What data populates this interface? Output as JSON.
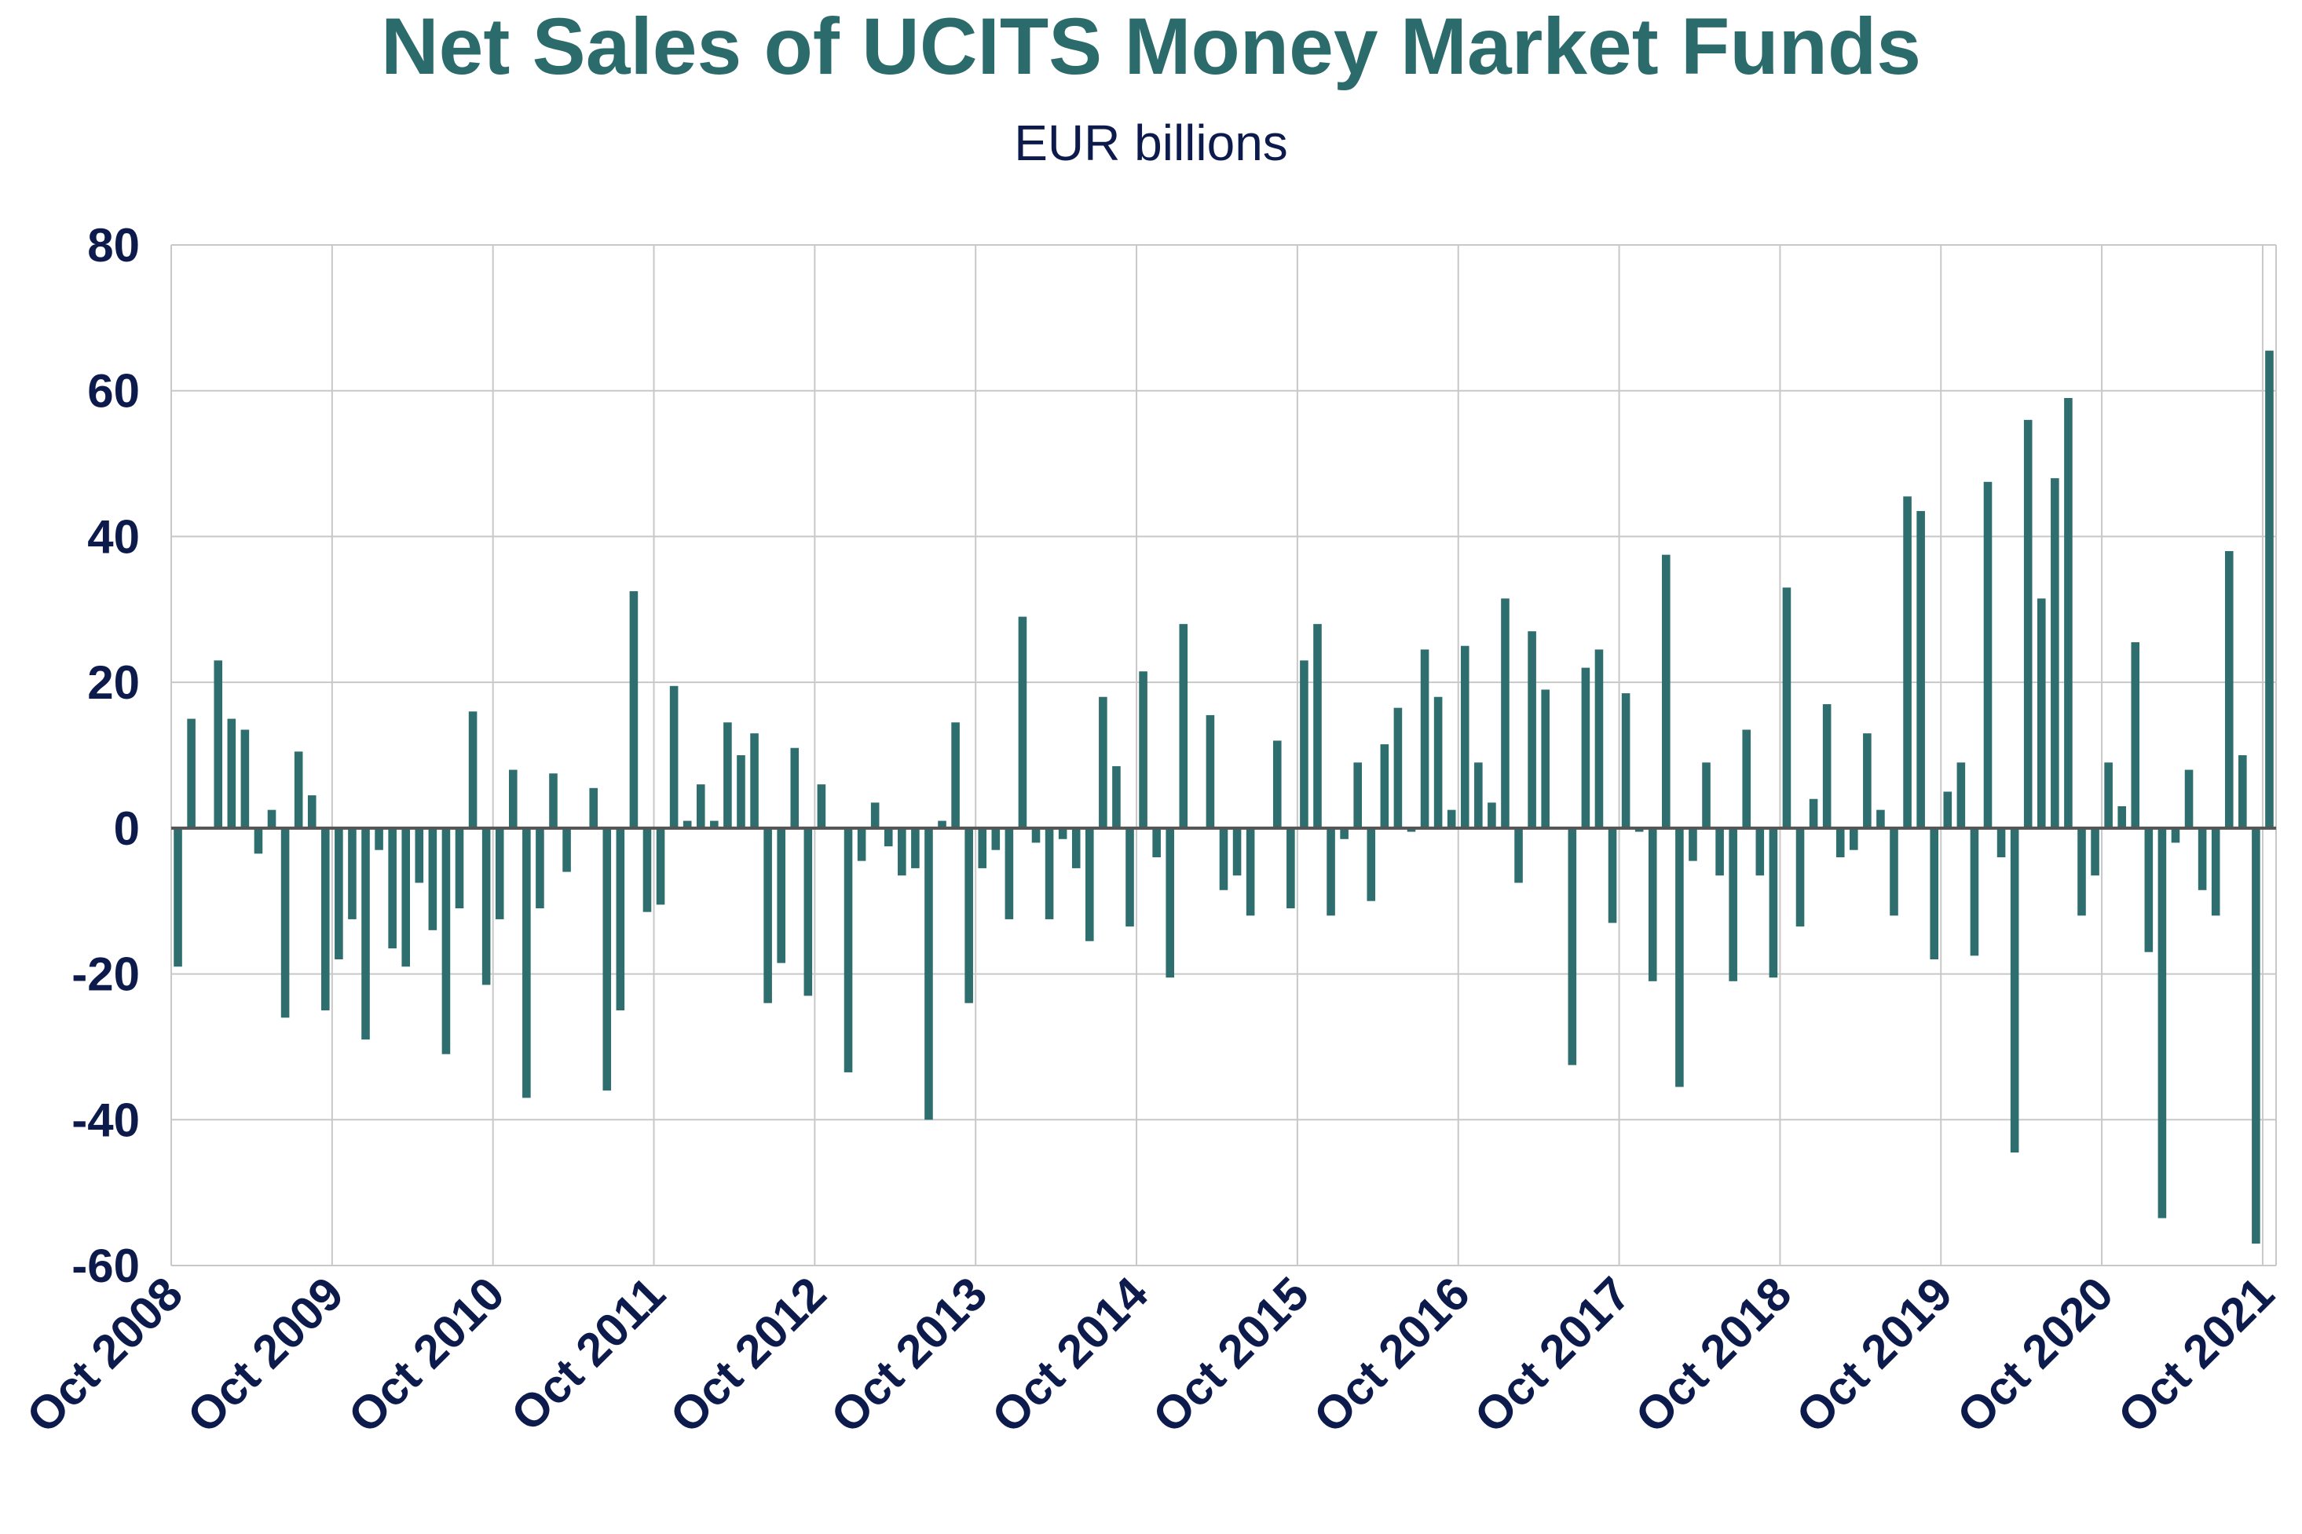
{
  "colors": {
    "title": "#2c6b6b",
    "subtitle": "#0d1b4c",
    "bar": "#2e6e6e",
    "axis_text": "#0d1b4c",
    "grid": "#c8c8c8",
    "zero_line": "#555555"
  },
  "chart_data": {
    "type": "bar",
    "title": "Net Sales of UCITS Money Market Funds",
    "subtitle": "EUR billions",
    "xlabel": "",
    "ylabel": "",
    "ylim": [
      -60,
      80
    ],
    "yticks": [
      80,
      60,
      40,
      20,
      0,
      -20,
      -40,
      -60
    ],
    "grid": true,
    "start": "Oct 2008",
    "end": "Oct 2021",
    "xtick_labels": [
      "Oct 2008",
      "Oct 2009",
      "Oct 2010",
      "Oct 2011",
      "Oct 2012",
      "Oct 2013",
      "Oct 2014",
      "Oct 2015",
      "Oct 2016",
      "Oct 2017",
      "Oct 2018",
      "Oct 2019",
      "Oct 2020",
      "Oct 2021"
    ],
    "values": [
      -19,
      15,
      0,
      23,
      15,
      13.5,
      -3.5,
      2.5,
      -26,
      10.5,
      4.5,
      -25,
      -18,
      -12.5,
      -29,
      -3,
      -16.5,
      -19,
      -7.5,
      -14,
      -31,
      -11,
      16,
      -21.5,
      -12.5,
      8,
      -37,
      -11,
      7.5,
      -6,
      0,
      5.5,
      -36,
      -25,
      32.5,
      -11.5,
      -10.5,
      19.5,
      1,
      6,
      1,
      14.5,
      10,
      13,
      -24,
      -18.5,
      11,
      -23,
      6,
      0,
      -33.5,
      -4.5,
      3.5,
      -2.5,
      -6.5,
      -5.5,
      -40,
      1,
      14.5,
      -24,
      -5.5,
      -3,
      -12.5,
      29,
      -2,
      -12.5,
      -1.5,
      -5.5,
      -15.5,
      18,
      8.5,
      -13.5,
      21.5,
      -4,
      -20.5,
      28,
      0,
      15.5,
      -8.5,
      -6.5,
      -12,
      0,
      12,
      -11,
      23,
      28,
      -12,
      -1.5,
      9,
      -10,
      11.5,
      16.5,
      -0.5,
      24.5,
      18,
      2.5,
      25,
      9,
      3.5,
      31.5,
      -7.5,
      27,
      19,
      0,
      -32.5,
      22,
      24.5,
      -13,
      18.5,
      -0.5,
      -21,
      37.5,
      -35.5,
      -4.5,
      9,
      -6.5,
      -21,
      13.5,
      -6.5,
      -20.5,
      33,
      -13.5,
      4,
      17,
      -4,
      -3,
      13,
      2.5,
      -12,
      45.5,
      43.5,
      -18,
      5,
      9,
      -17.5,
      47.5,
      -4,
      -44.5,
      56,
      31.5,
      48,
      59,
      -12,
      -6.5,
      9,
      3,
      25.5,
      -17,
      -53.5,
      -2,
      8,
      -8.5,
      -12,
      38,
      10,
      -57,
      65.5
    ]
  }
}
